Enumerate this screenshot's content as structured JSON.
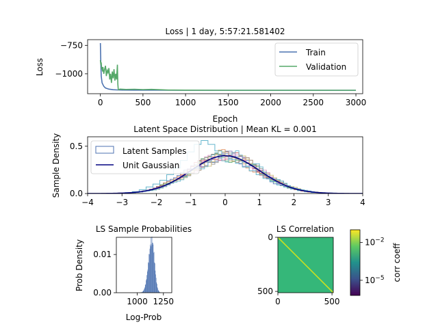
{
  "chart_data": [
    {
      "type": "line",
      "title": "Loss | 1 day, 5:57:21.581402",
      "xlabel": "Epoch",
      "ylabel": "Loss",
      "xlim": [
        -150,
        3080
      ],
      "ylim": [
        -1175,
        -700
      ],
      "xticks": [
        0,
        500,
        1000,
        1500,
        2000,
        2500,
        3000
      ],
      "xtick_labels": [
        "0",
        "500",
        "1000",
        "1500",
        "2000",
        "2500",
        "3000"
      ],
      "yticks": [
        -750,
        -1000
      ],
      "ytick_labels": [
        "−750",
        "−1000"
      ],
      "legend_position": "top-right",
      "series": [
        {
          "name": "Train",
          "color": "#4c72b0",
          "x": [
            0,
            5,
            10,
            20,
            40,
            60,
            100,
            150,
            200,
            260,
            400,
            700,
            1000,
            1500,
            2000,
            2500,
            3000
          ],
          "y": [
            -730,
            -900,
            -1020,
            -1080,
            -1110,
            -1125,
            -1135,
            -1140,
            -1142,
            -1143,
            -1144,
            -1144,
            -1145,
            -1145,
            -1145,
            -1145,
            -1145
          ]
        },
        {
          "name": "Validation",
          "color": "#55a868",
          "x": [
            0,
            5,
            10,
            15,
            20,
            25,
            30,
            40,
            50,
            60,
            70,
            80,
            90,
            100,
            110,
            120,
            130,
            140,
            150,
            160,
            170,
            180,
            190,
            200,
            205,
            210,
            215,
            230,
            300,
            400,
            500,
            600,
            700,
            800,
            1000,
            1500,
            2000,
            2500,
            3000
          ],
          "y": [
            -880,
            -920,
            -900,
            -960,
            -940,
            -980,
            -940,
            -1000,
            -960,
            -930,
            -1020,
            -970,
            -990,
            -950,
            -1050,
            -1000,
            -1080,
            -980,
            -1040,
            -960,
            -1060,
            -1000,
            -1050,
            -920,
            -1090,
            -1138,
            -1140,
            -1135,
            -1138,
            -1136,
            -1139,
            -1137,
            -1140,
            -1143,
            -1144,
            -1145,
            -1145,
            -1145,
            -1145
          ]
        }
      ]
    },
    {
      "type": "area",
      "title": "Latent Space Distribution | Mean KL = 0.001",
      "xlabel": "",
      "ylabel": "Sample Density",
      "xlim": [
        -4,
        4
      ],
      "ylim": [
        0,
        0.6
      ],
      "xticks": [
        -4,
        -3,
        -2,
        -1,
        0,
        1,
        2,
        3,
        4
      ],
      "xtick_labels": [
        "−4",
        "−3",
        "−2",
        "−1",
        "0",
        "1",
        "2",
        "3",
        "4"
      ],
      "yticks": [
        0.0,
        0.5
      ],
      "ytick_labels": [
        "0.0",
        "0.5"
      ],
      "legend_position": "top-left",
      "legend": [
        {
          "name": "Latent Samples",
          "kind": "step",
          "color": "#4c72b0"
        },
        {
          "name": "Unit Gaussian",
          "kind": "line",
          "color": "#000080"
        }
      ],
      "histogram_colors": [
        "#4c72b0",
        "#dd8452",
        "#55a868",
        "#c44e52",
        "#8172b3",
        "#937860",
        "#da8bc3",
        "#8c8c8c",
        "#ccb974",
        "#64b5cd"
      ],
      "highlight_histogram": {
        "color": "#64b5cd",
        "bin_centers": [
          -2.8,
          -2.6,
          -2.4,
          -2.2,
          -2.0,
          -1.8,
          -1.6,
          -1.4,
          -1.2,
          -1.0,
          -0.8,
          -0.6,
          -0.4,
          -0.2,
          0.0,
          0.2,
          0.4,
          0.6,
          0.8,
          1.0,
          1.2,
          1.4,
          1.6,
          1.8,
          2.0,
          2.2,
          2.4,
          2.6,
          2.8
        ],
        "density": [
          0.01,
          0.02,
          0.04,
          0.07,
          0.1,
          0.14,
          0.2,
          0.27,
          0.35,
          0.44,
          0.52,
          0.56,
          0.52,
          0.45,
          0.4,
          0.36,
          0.32,
          0.28,
          0.24,
          0.2,
          0.16,
          0.13,
          0.09,
          0.07,
          0.05,
          0.03,
          0.02,
          0.01,
          0.005
        ]
      },
      "unit_gaussian": {
        "mean": 0,
        "std": 1,
        "color": "#000080"
      }
    },
    {
      "type": "bar",
      "title": "LS Sample Probabilities",
      "xlabel": "Log-Prob",
      "ylabel": "Prob Density",
      "xlim": [
        800,
        1330
      ],
      "ylim": [
        0,
        0.0145
      ],
      "xticks": [
        1000,
        1250
      ],
      "xtick_labels": [
        "1000",
        "1250"
      ],
      "yticks": [
        0.0,
        0.01
      ],
      "ytick_labels": [
        "0.00",
        "0.01"
      ],
      "color": "#4c72b0",
      "distribution": {
        "mean": 1140,
        "std": 28,
        "peak": 0.0138
      }
    },
    {
      "type": "heatmap",
      "title": "LS Correlation",
      "xlim": [
        0,
        512
      ],
      "ylim": [
        512,
        0
      ],
      "xticks": [
        0,
        500
      ],
      "xtick_labels": [
        "0",
        "500"
      ],
      "yticks": [
        0,
        500
      ],
      "ytick_labels": [
        "0",
        "500"
      ],
      "colormap": "viridis",
      "background_color": "#35b779",
      "diagonal_color": "#c8e020",
      "colorbar": {
        "label": "corr coeff",
        "scale": "log",
        "tick_labels": [
          "10^-2",
          "10^-5"
        ],
        "tick_exponents": [
          -2,
          -5
        ],
        "colors": [
          "#440154",
          "#3b528b",
          "#21918c",
          "#5ec962",
          "#fde725"
        ]
      }
    }
  ]
}
